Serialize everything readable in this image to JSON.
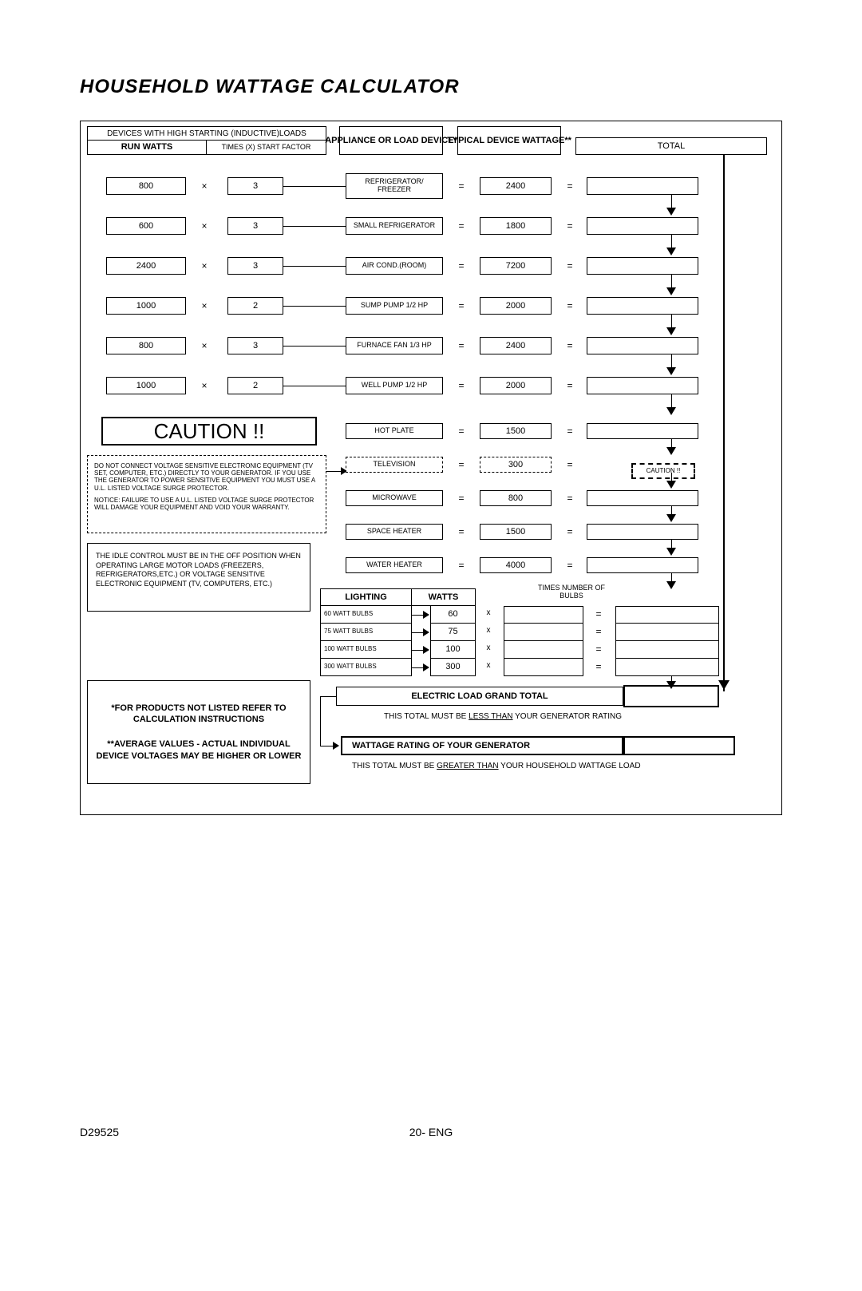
{
  "title": "HOUSEHOLD WATTAGE CALCULATOR",
  "headers": {
    "inductive": "DEVICES WITH HIGH STARTING (INDUCTIVE)LOADS",
    "run_watts": "RUN WATTS",
    "start_factor": "TIMES (X) START FACTOR",
    "appliance": "APPLIANCE OR LOAD DEVICE*",
    "device_wattage": "TYPICAL DEVICE WATTAGE**",
    "total": "TOTAL"
  },
  "rows_top": [
    {
      "run": "800",
      "factor": "3",
      "device": "REFRIGERATOR/\nFREEZER",
      "watt": "2400"
    },
    {
      "run": "600",
      "factor": "3",
      "device": "SMALL REFRIGERATOR",
      "watt": "1800"
    },
    {
      "run": "2400",
      "factor": "3",
      "device": "AIR COND.(ROOM)",
      "watt": "7200"
    },
    {
      "run": "1000",
      "factor": "2",
      "device": "SUMP PUMP 1/2 HP",
      "watt": "2000"
    },
    {
      "run": "800",
      "factor": "3",
      "device": "FURNACE FAN 1/3 HP",
      "watt": "2400"
    },
    {
      "run": "1000",
      "factor": "2",
      "device": "WELL PUMP 1/2 HP",
      "watt": "2000"
    }
  ],
  "rows_mid": [
    {
      "device": "HOT PLATE",
      "watt": "1500",
      "dashed": false
    },
    {
      "device": "TELEVISION",
      "watt": "300",
      "dashed": true
    },
    {
      "device": "MICROWAVE",
      "watt": "800",
      "dashed": false
    },
    {
      "device": "SPACE HEATER",
      "watt": "1500",
      "dashed": false
    },
    {
      "device": "WATER HEATER",
      "watt": "4000",
      "dashed": false
    }
  ],
  "caution_label": "CAUTION !!",
  "caution_text": "DO NOT CONNECT VOLTAGE SENSITIVE ELECTRONIC EQUIPMENT (TV SET, COMPUTER, ETC.) DIRECTLY TO YOUR GENERATOR. IF YOU USE THE GENERATOR TO POWER SENSITIVE EQUIPMENT YOU MUST USE A U.L. LISTED VOLTAGE SURGE PROTECTOR.",
  "caution_notice": "NOTICE: FAILURE TO USE A U.L. LISTED VOLTAGE SURGE PROTECTOR WILL DAMAGE YOUR EQUIPMENT AND VOID YOUR WARRANTY.",
  "idle_text": "THE IDLE CONTROL MUST BE IN THE OFF POSITION WHEN OPERATING LARGE MOTOR LOADS (FREEZERS, REFRIGERATORS,ETC.) OR VOLTAGE SENSITIVE ELECTRONIC EQUIPMENT (TV, COMPUTERS, ETC.)",
  "lighting": {
    "header_lighting": "LIGHTING",
    "header_watts": "WATTS",
    "header_times": "TIMES NUMBER OF BULBS",
    "rows": [
      {
        "label": "60 WATT BULBS",
        "watts": "60"
      },
      {
        "label": "75 WATT BULBS",
        "watts": "75"
      },
      {
        "label": "100 WATT BULBS",
        "watts": "100"
      },
      {
        "label": "300 WATT BULBS",
        "watts": "300"
      }
    ]
  },
  "grand_total": {
    "electric_load": "ELECTRIC LOAD GRAND TOTAL",
    "note1_pre": "THIS TOTAL MUST BE ",
    "note1_uline": "LESS THAN",
    "note1_post": " YOUR GENERATOR RATING",
    "generator": "WATTAGE RATING OF YOUR GENERATOR",
    "note2_pre": "THIS TOTAL MUST BE ",
    "note2_uline": "GREATER THAN",
    "note2_post": " YOUR HOUSEHOLD WATTAGE LOAD"
  },
  "notes": {
    "products": "*FOR PRODUCTS NOT LISTED REFER TO CALCULATION INSTRUCTIONS",
    "average": "**AVERAGE VALUES - ACTUAL INDIVIDUAL DEVICE VOLTAGES MAY BE HIGHER OR LOWER"
  },
  "caution_small": "CAUTION !!",
  "footer": {
    "left": "D29525",
    "center": "20- ENG"
  },
  "x_symbol": "×",
  "eq_symbol": "=",
  "x_small": "x"
}
